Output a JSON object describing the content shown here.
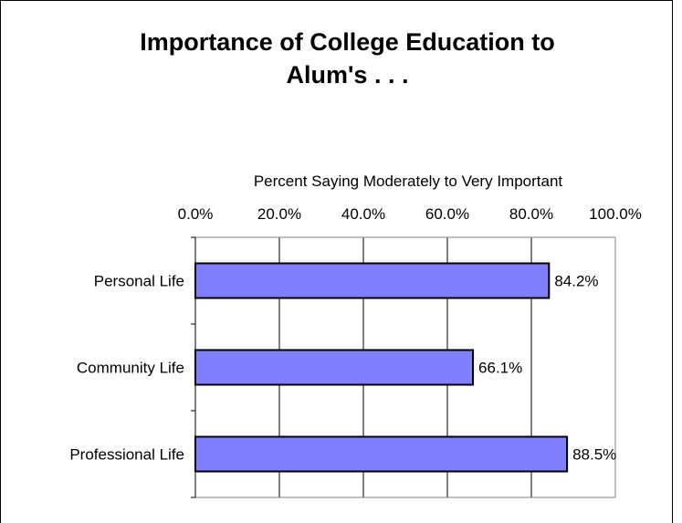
{
  "chart_data": {
    "type": "bar",
    "orientation": "horizontal",
    "title_lines": [
      "Importance of College Education to",
      "Alum's . . ."
    ],
    "xlabel": "Percent Saying Moderately to Very Important",
    "ylabel": "",
    "xlim": [
      0,
      100
    ],
    "x_tick_labels": [
      "0.0%",
      "20.0%",
      "40.0%",
      "60.0%",
      "80.0%",
      "100.0%"
    ],
    "x_ticks": [
      0,
      20,
      40,
      60,
      80,
      100
    ],
    "x_axis_position": "top",
    "grid": "vertical",
    "categories": [
      "Personal Life",
      "Community Life",
      "Professional Life"
    ],
    "values": [
      84.2,
      66.1,
      88.5
    ],
    "data_labels": [
      "84.2%",
      "66.1%",
      "88.5%"
    ],
    "legend": "none",
    "bar_color": "#8080FF",
    "bar_edge_color": "#000000"
  }
}
